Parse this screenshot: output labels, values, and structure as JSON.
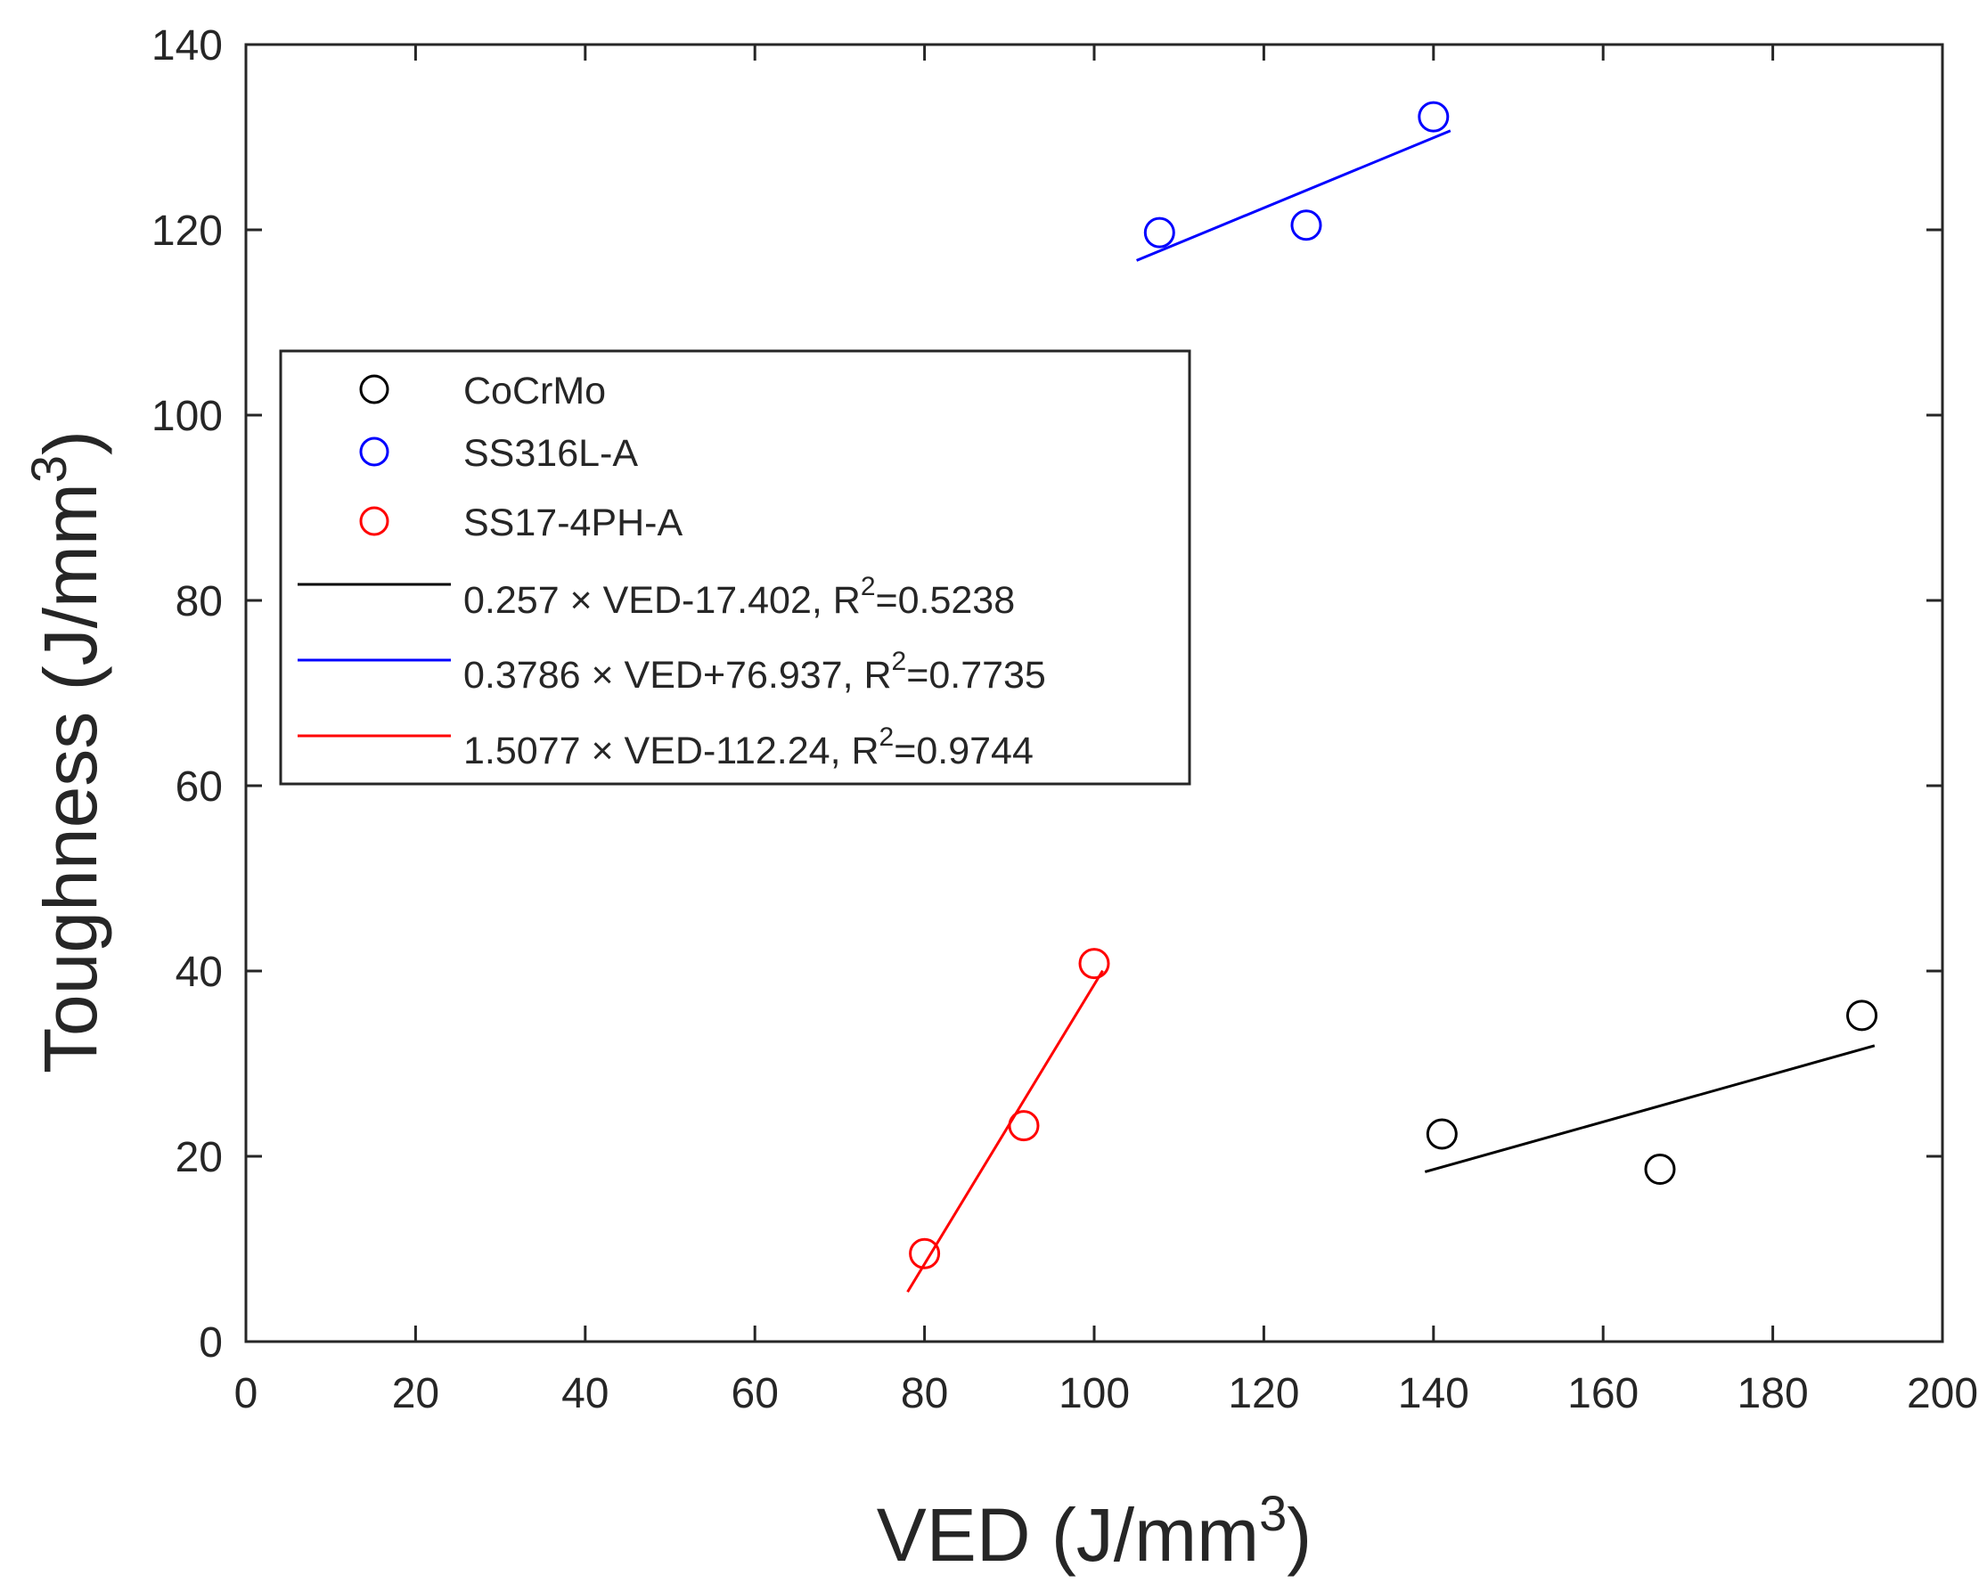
{
  "chart_data": {
    "type": "scatter",
    "title": "",
    "xlabel": "VED (J/mm",
    "ylabel": "Toughness (J/mm",
    "label_superscript": "3",
    "xlim": [
      0,
      200
    ],
    "ylim": [
      0,
      140
    ],
    "xticks": [
      0,
      20,
      40,
      60,
      80,
      100,
      120,
      140,
      160,
      180,
      200
    ],
    "yticks": [
      0,
      20,
      40,
      60,
      80,
      100,
      120,
      140
    ],
    "grid": false,
    "legend_position": "left-middle",
    "series": [
      {
        "name": "CoCrMo",
        "color": "#000000",
        "marker": "circle-open",
        "x": [
          141,
          166.7,
          190.5
        ],
        "y": [
          22.4,
          18.6,
          35.2
        ],
        "fit": {
          "x_range": [
            139,
            192
          ],
          "slope": 0.257,
          "intercept": -17.402
        }
      },
      {
        "name": "SS316L-A",
        "color": "#0000ff",
        "marker": "circle-open",
        "x": [
          107.7,
          125,
          140
        ],
        "y": [
          119.7,
          120.5,
          132.2
        ],
        "fit": {
          "x_range": [
            105,
            142
          ],
          "slope": 0.3786,
          "intercept": 76.937
        }
      },
      {
        "name": "SS17-4PH-A",
        "color": "#ff0000",
        "marker": "circle-open",
        "x": [
          80,
          91.7,
          100
        ],
        "y": [
          9.5,
          23.3,
          40.8
        ],
        "fit": {
          "x_range": [
            78,
            101
          ],
          "slope": 1.5077,
          "intercept": -112.24
        }
      }
    ],
    "legend": {
      "series_entries": [
        "CoCrMo",
        "SS316L-A",
        "SS17-4PH-A"
      ],
      "fit_entries": [
        {
          "color": "#000000",
          "text": "0.257 × VED-17.402, R",
          "r2": "=0.5238"
        },
        {
          "color": "#0000ff",
          "text": "0.3786 × VED+76.937, R",
          "r2": "=0.7735"
        },
        {
          "color": "#ff0000",
          "text": "1.5077 × VED-112.24, R",
          "r2": "=0.9744"
        }
      ],
      "r2_superscript": "2"
    }
  }
}
